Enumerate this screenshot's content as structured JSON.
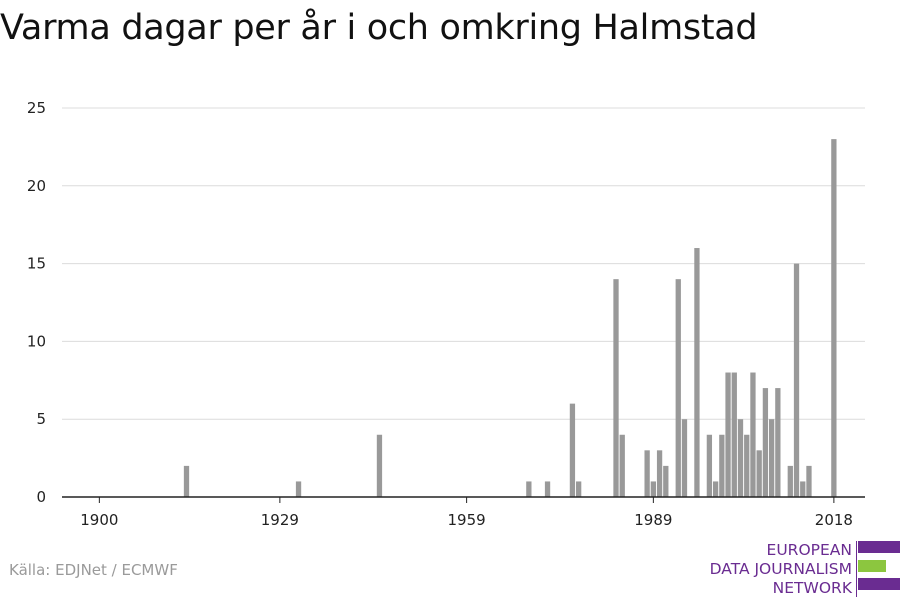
{
  "header": {
    "title": "Varma dagar per år i och omkring Halmstad"
  },
  "footer": {
    "source": "Källa: EDJNet / ECMWF",
    "logo_lines": [
      "EUROPEAN",
      "DATA JOURNALISM",
      "NETWORK"
    ],
    "logo_colors": {
      "purple": "#6a2c91",
      "green": "#8cc63f"
    }
  },
  "chart_data": {
    "type": "bar",
    "title": "Varma dagar per år i och omkring Halmstad",
    "xlabel": "",
    "ylabel": "",
    "xlim": [
      1894,
      2023
    ],
    "ylim": [
      0,
      25
    ],
    "x_ticks": [
      1900,
      1929,
      1959,
      1989,
      2018
    ],
    "y_ticks": [
      0,
      5,
      10,
      15,
      20,
      25
    ],
    "grid": true,
    "bar_color": "#999999",
    "x": [
      1914,
      1932,
      1945,
      1969,
      1972,
      1976,
      1977,
      1983,
      1984,
      1988,
      1989,
      1990,
      1991,
      1993,
      1994,
      1996,
      1998,
      1999,
      2000,
      2001,
      2002,
      2003,
      2004,
      2005,
      2006,
      2007,
      2008,
      2009,
      2011,
      2012,
      2013,
      2014,
      2018
    ],
    "values": [
      2,
      1,
      4,
      1,
      1,
      6,
      1,
      14,
      4,
      3,
      1,
      3,
      2,
      14,
      5,
      16,
      4,
      1,
      4,
      8,
      8,
      5,
      4,
      8,
      3,
      7,
      5,
      7,
      2,
      15,
      1,
      2,
      23
    ]
  }
}
